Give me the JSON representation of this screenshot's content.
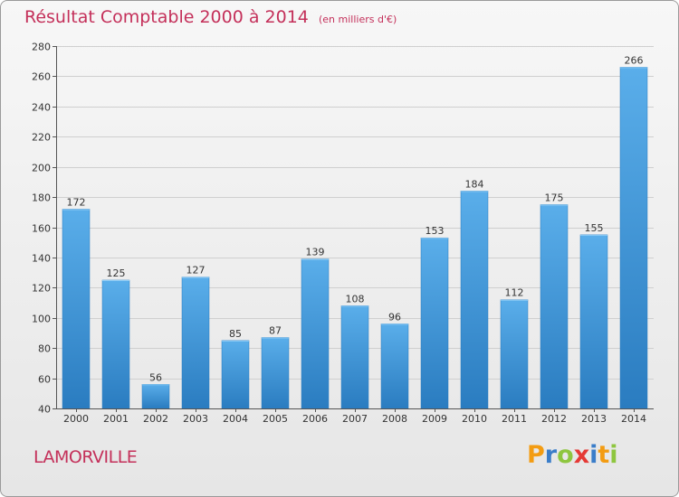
{
  "title": "Résultat Comptable 2000 à 2014",
  "subtitle": "(en milliers d'€)",
  "place_name": "LAMORVILLE",
  "brand": {
    "text": "Proxiti",
    "letters": [
      "P",
      "r",
      "o",
      "x",
      "i",
      "t",
      "i"
    ],
    "colors": [
      "#f39c12",
      "#3a7dc9",
      "#8ec63f",
      "#e53935",
      "#3a7dc9",
      "#f39c12",
      "#8ec63f"
    ]
  },
  "colors": {
    "title": "#c4305a",
    "bar_light": "#5aaeea",
    "bar_dark": "#2a7cc0",
    "grid": "#cfcfcf",
    "axis": "#555555"
  },
  "chart_data": {
    "type": "bar",
    "categories": [
      "2000",
      "2001",
      "2002",
      "2003",
      "2004",
      "2005",
      "2006",
      "2007",
      "2008",
      "2009",
      "2010",
      "2011",
      "2012",
      "2013",
      "2014"
    ],
    "values": [
      172,
      125,
      56,
      127,
      85,
      87,
      139,
      108,
      96,
      153,
      184,
      112,
      175,
      155,
      266
    ],
    "value_labels": [
      "172",
      "125",
      "56",
      "127",
      "85",
      "87",
      "139",
      "108",
      "96",
      "153",
      "184",
      "112",
      "175",
      "155",
      "266"
    ],
    "yticks": [
      40,
      60,
      80,
      100,
      120,
      140,
      160,
      180,
      200,
      220,
      240,
      260,
      280
    ],
    "ylim": [
      40,
      280
    ],
    "grid": true
  }
}
